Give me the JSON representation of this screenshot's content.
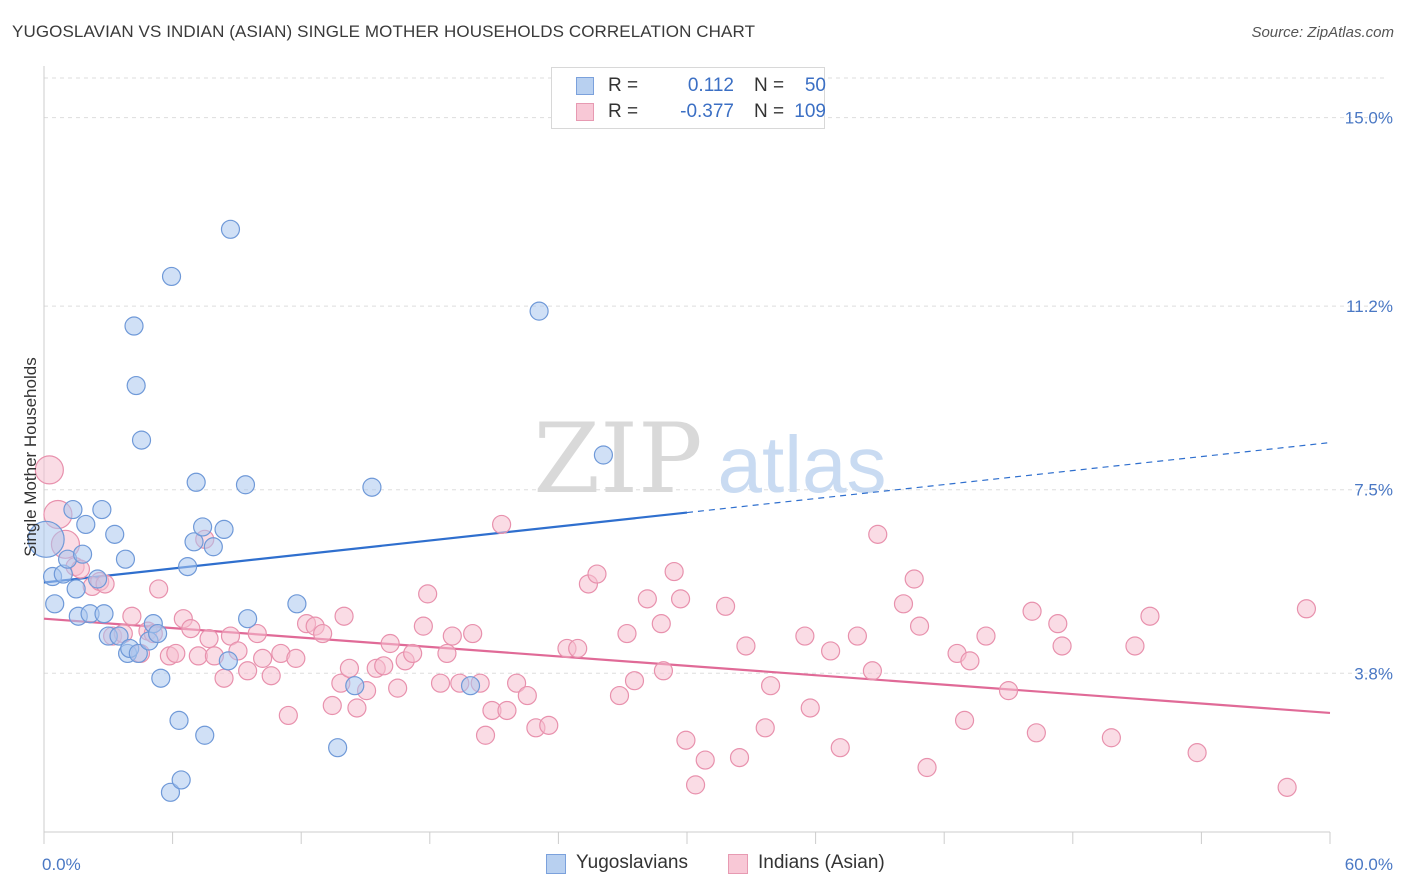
{
  "title": "YUGOSLAVIAN VS INDIAN (ASIAN) SINGLE MOTHER HOUSEHOLDS CORRELATION CHART",
  "source": "Source: ZipAtlas.com",
  "watermark": {
    "zip": "ZIP",
    "atlas": "atlas"
  },
  "legend_top": {
    "rows": [
      {
        "r_label": "R =",
        "r_value": "0.112",
        "n_label": "N =",
        "n_value": "50"
      },
      {
        "r_label": "R =",
        "r_value": "-0.377",
        "n_label": "N =",
        "n_value": "109"
      }
    ]
  },
  "legend_bottom": {
    "series_a": "Yugoslavians",
    "series_b": "Indians (Asian)"
  },
  "colors": {
    "blue_fill": "#a9c6ee",
    "blue_stroke": "#6f99d8",
    "blue_line": "#2f6fce",
    "pink_fill": "#f6bfd0",
    "pink_stroke": "#e891ad",
    "pink_line": "#e06a97",
    "grid": "#dddddd",
    "tick_text": "#4a78c4"
  },
  "chart_data": {
    "type": "scatter",
    "title": "YUGOSLAVIAN VS INDIAN (ASIAN) SINGLE MOTHER HOUSEHOLDS CORRELATION CHART",
    "xlabel": "",
    "ylabel": "Single Mother Households",
    "xlim": [
      0,
      60
    ],
    "ylim": [
      0.6,
      15.8
    ],
    "x_tick_labels": [
      "0.0%",
      "60.0%"
    ],
    "y_ticks": [
      3.8,
      7.5,
      11.2,
      15.0
    ],
    "y_tick_labels": [
      "3.8%",
      "7.5%",
      "11.2%",
      "15.0%"
    ],
    "grid": true,
    "series": [
      {
        "name": "Yugoslavians",
        "color_key": "blue",
        "r": 0.112,
        "n": 50,
        "trend": {
          "x0": 0.0,
          "y0": 5.63,
          "x1": 60.0,
          "y1": 8.45,
          "solid_until": 30.0
        },
        "points": [
          [
            0.1,
            6.5,
            18
          ],
          [
            0.4,
            5.75,
            9
          ],
          [
            0.5,
            5.2,
            9
          ],
          [
            0.9,
            5.8,
            9
          ],
          [
            1.1,
            6.1,
            9
          ],
          [
            1.35,
            7.1,
            9
          ],
          [
            1.5,
            5.5,
            9
          ],
          [
            1.6,
            4.95,
            9
          ],
          [
            1.8,
            6.2,
            9
          ],
          [
            1.95,
            6.8,
            9
          ],
          [
            2.15,
            5.0,
            9
          ],
          [
            2.5,
            5.7,
            9
          ],
          [
            2.7,
            7.1,
            9
          ],
          [
            2.8,
            5.0,
            9
          ],
          [
            3.0,
            4.55,
            9
          ],
          [
            3.3,
            6.6,
            9
          ],
          [
            3.5,
            4.55,
            9
          ],
          [
            3.8,
            6.1,
            9
          ],
          [
            3.9,
            4.2,
            9
          ],
          [
            4.0,
            4.3,
            9
          ],
          [
            4.2,
            10.8,
            9
          ],
          [
            4.3,
            9.6,
            9
          ],
          [
            4.4,
            4.2,
            9
          ],
          [
            4.55,
            8.5,
            9
          ],
          [
            4.9,
            4.45,
            9
          ],
          [
            5.1,
            4.8,
            9
          ],
          [
            5.3,
            4.6,
            9
          ],
          [
            5.45,
            3.7,
            9
          ],
          [
            5.9,
            1.4,
            9
          ],
          [
            5.95,
            11.8,
            9
          ],
          [
            6.3,
            2.85,
            9
          ],
          [
            6.4,
            1.65,
            9
          ],
          [
            6.7,
            5.95,
            9
          ],
          [
            7.0,
            6.45,
            9
          ],
          [
            7.1,
            7.65,
            9
          ],
          [
            7.4,
            6.75,
            9
          ],
          [
            7.5,
            2.55,
            9
          ],
          [
            7.9,
            6.35,
            9
          ],
          [
            8.4,
            6.7,
            9
          ],
          [
            8.6,
            4.05,
            9
          ],
          [
            8.7,
            12.75,
            9
          ],
          [
            9.4,
            7.6,
            9
          ],
          [
            9.5,
            4.9,
            9
          ],
          [
            11.8,
            5.2,
            9
          ],
          [
            13.7,
            2.3,
            9
          ],
          [
            14.5,
            3.55,
            9
          ],
          [
            15.3,
            7.55,
            9
          ],
          [
            19.9,
            3.55,
            9
          ],
          [
            23.1,
            11.1,
            9
          ],
          [
            26.1,
            8.2,
            9
          ]
        ]
      },
      {
        "name": "Indians (Asian)",
        "color_key": "pink",
        "r": -0.377,
        "n": 109,
        "trend": {
          "x0": 0.0,
          "y0": 4.9,
          "x1": 60.0,
          "y1": 3.0,
          "solid_until": 60.0
        },
        "points": [
          [
            0.25,
            7.9,
            14
          ],
          [
            0.65,
            7.0,
            14
          ],
          [
            1.0,
            6.4,
            14
          ],
          [
            1.45,
            5.95,
            9
          ],
          [
            1.7,
            5.9,
            9
          ],
          [
            2.25,
            5.55,
            9
          ],
          [
            2.6,
            5.65,
            9
          ],
          [
            2.85,
            5.6,
            9
          ],
          [
            3.2,
            4.55,
            9
          ],
          [
            3.7,
            4.6,
            9
          ],
          [
            4.1,
            4.95,
            9
          ],
          [
            4.5,
            4.2,
            9
          ],
          [
            4.85,
            4.65,
            9
          ],
          [
            5.1,
            4.6,
            9
          ],
          [
            5.35,
            5.5,
            9
          ],
          [
            5.85,
            4.15,
            9
          ],
          [
            6.15,
            4.2,
            9
          ],
          [
            6.5,
            4.9,
            9
          ],
          [
            6.85,
            4.7,
            9
          ],
          [
            7.2,
            4.15,
            9
          ],
          [
            7.5,
            6.5,
            9
          ],
          [
            7.7,
            4.5,
            9
          ],
          [
            7.95,
            4.15,
            9
          ],
          [
            8.4,
            3.7,
            9
          ],
          [
            8.7,
            4.55,
            9
          ],
          [
            9.05,
            4.25,
            9
          ],
          [
            9.5,
            3.85,
            9
          ],
          [
            9.95,
            4.6,
            9
          ],
          [
            10.2,
            4.1,
            9
          ],
          [
            10.6,
            3.75,
            9
          ],
          [
            11.05,
            4.2,
            9
          ],
          [
            11.4,
            2.95,
            9
          ],
          [
            11.75,
            4.1,
            9
          ],
          [
            12.25,
            4.8,
            9
          ],
          [
            12.65,
            4.75,
            9
          ],
          [
            13.0,
            4.6,
            9
          ],
          [
            13.45,
            3.15,
            9
          ],
          [
            13.85,
            3.6,
            9
          ],
          [
            14.0,
            4.95,
            9
          ],
          [
            14.25,
            3.9,
            9
          ],
          [
            14.6,
            3.1,
            9
          ],
          [
            15.05,
            3.45,
            9
          ],
          [
            15.5,
            3.9,
            9
          ],
          [
            15.85,
            3.95,
            9
          ],
          [
            16.15,
            4.4,
            9
          ],
          [
            16.5,
            3.5,
            9
          ],
          [
            16.85,
            4.05,
            9
          ],
          [
            17.2,
            4.2,
            9
          ],
          [
            17.7,
            4.75,
            9
          ],
          [
            17.9,
            5.4,
            9
          ],
          [
            18.5,
            3.6,
            9
          ],
          [
            18.8,
            4.2,
            9
          ],
          [
            19.05,
            4.55,
            9
          ],
          [
            19.4,
            3.6,
            9
          ],
          [
            20.0,
            4.6,
            9
          ],
          [
            20.35,
            3.6,
            9
          ],
          [
            20.6,
            2.55,
            9
          ],
          [
            20.9,
            3.05,
            9
          ],
          [
            21.35,
            6.8,
            9
          ],
          [
            21.6,
            3.05,
            9
          ],
          [
            22.05,
            3.6,
            9
          ],
          [
            22.55,
            3.35,
            9
          ],
          [
            22.95,
            2.7,
            9
          ],
          [
            23.55,
            2.75,
            9
          ],
          [
            24.4,
            4.3,
            9
          ],
          [
            24.9,
            4.3,
            9
          ],
          [
            25.4,
            5.6,
            9
          ],
          [
            25.8,
            5.8,
            9
          ],
          [
            26.85,
            3.35,
            9
          ],
          [
            27.2,
            4.6,
            9
          ],
          [
            27.55,
            3.65,
            9
          ],
          [
            28.15,
            5.3,
            9
          ],
          [
            28.8,
            4.8,
            9
          ],
          [
            28.9,
            3.85,
            9
          ],
          [
            29.4,
            5.85,
            9
          ],
          [
            29.7,
            5.3,
            9
          ],
          [
            29.95,
            2.45,
            9
          ],
          [
            30.4,
            1.55,
            9
          ],
          [
            30.85,
            2.05,
            9
          ],
          [
            31.8,
            5.15,
            9
          ],
          [
            32.45,
            2.1,
            9
          ],
          [
            32.75,
            4.35,
            9
          ],
          [
            33.65,
            2.7,
            9
          ],
          [
            33.9,
            3.55,
            9
          ],
          [
            35.5,
            4.55,
            9
          ],
          [
            35.75,
            3.1,
            9
          ],
          [
            36.7,
            4.25,
            9
          ],
          [
            37.15,
            2.3,
            9
          ],
          [
            37.95,
            4.55,
            9
          ],
          [
            38.65,
            3.85,
            9
          ],
          [
            38.9,
            6.6,
            9
          ],
          [
            40.1,
            5.2,
            9
          ],
          [
            40.6,
            5.7,
            9
          ],
          [
            40.85,
            4.75,
            9
          ],
          [
            41.2,
            1.9,
            9
          ],
          [
            42.6,
            4.2,
            9
          ],
          [
            42.95,
            2.85,
            9
          ],
          [
            43.2,
            4.05,
            9
          ],
          [
            43.95,
            4.55,
            9
          ],
          [
            45.0,
            3.45,
            9
          ],
          [
            46.1,
            5.05,
            9
          ],
          [
            46.3,
            2.6,
            9
          ],
          [
            47.3,
            4.8,
            9
          ],
          [
            47.5,
            4.35,
            9
          ],
          [
            49.8,
            2.5,
            9
          ],
          [
            50.9,
            4.35,
            9
          ],
          [
            51.6,
            4.95,
            9
          ],
          [
            53.8,
            2.2,
            9
          ],
          [
            58.0,
            1.5,
            9
          ],
          [
            58.9,
            5.1,
            9
          ]
        ]
      }
    ]
  }
}
